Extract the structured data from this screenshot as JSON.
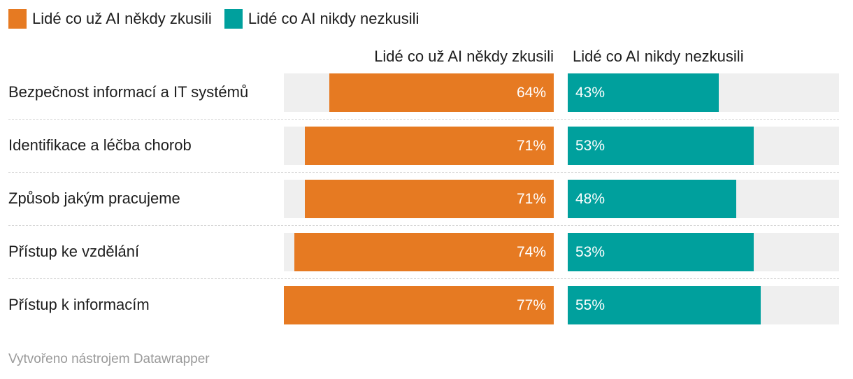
{
  "legend": {
    "items": [
      {
        "label": "Lidé co už AI někdy zkusili",
        "color": "#e67a22"
      },
      {
        "label": "Lidé co AI nikdy nezkusili",
        "color": "#00a09d"
      }
    ]
  },
  "columns": {
    "left": "Lidé co už AI někdy zkusili",
    "right": "Lidé co AI nikdy nezkusili"
  },
  "chart_data": {
    "type": "bar",
    "categories": [
      "Bezpečnost informací a IT systémů",
      "Identifikace a léčba chorob",
      "Způsob jakým pracujeme",
      "Přístup ke vzdělání",
      "Přístup k informacím"
    ],
    "series": [
      {
        "name": "Lidé co už AI někdy zkusili",
        "values": [
          64,
          71,
          71,
          74,
          77
        ],
        "labels": [
          "64%",
          "71%",
          "71%",
          "74%",
          "77%"
        ],
        "color": "#e67a22"
      },
      {
        "name": "Lidé co AI nikdy nezkusili",
        "values": [
          43,
          53,
          48,
          53,
          55
        ],
        "labels": [
          "43%",
          "53%",
          "48%",
          "53%",
          "55%"
        ],
        "color": "#00a09d"
      }
    ],
    "xlim": [
      0,
      77
    ],
    "track_color": "#efefef"
  },
  "footer": "Vytvořeno nástrojem Datawrapper"
}
